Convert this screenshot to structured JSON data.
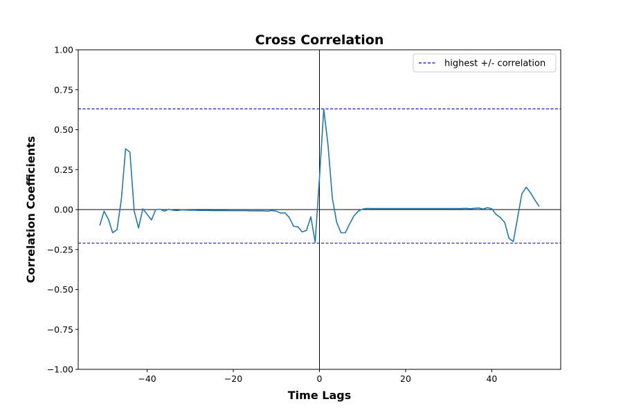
{
  "chart_data": {
    "type": "line",
    "title": "Cross Correlation",
    "xlabel": "Time Lags",
    "ylabel": "Correlation Coefficients",
    "xlim": [
      -56,
      56
    ],
    "ylim": [
      -1.0,
      1.0
    ],
    "x_ticks": [
      -40,
      -20,
      0,
      20,
      40
    ],
    "x_tick_labels": [
      "−40",
      "−20",
      "0",
      "20",
      "40"
    ],
    "y_ticks": [
      -1.0,
      -0.75,
      -0.5,
      -0.25,
      0.0,
      0.25,
      0.5,
      0.75,
      1.0
    ],
    "y_tick_labels": [
      "−1.00",
      "−0.75",
      "−0.50",
      "−0.25",
      "0.00",
      "0.25",
      "0.50",
      "0.75",
      "1.00"
    ],
    "grid": false,
    "legend": {
      "placement": "top-right",
      "entries": [
        "highest +/- correlation"
      ]
    },
    "series": [
      {
        "color": "#1f77b4",
        "x": [
          -51,
          -50,
          -49,
          -48,
          -47,
          -46,
          -45,
          -44,
          -43,
          -42,
          -41,
          -40,
          -39,
          -38,
          -37,
          -36,
          -35,
          -34,
          -33,
          -32,
          -31,
          -30,
          -29,
          -28,
          -27,
          -26,
          -25,
          -24,
          -23,
          -22,
          -21,
          -20,
          -19,
          -18,
          -17,
          -16,
          -15,
          -14,
          -13,
          -12,
          -11,
          -10,
          -9,
          -8,
          -7,
          -6,
          -5,
          -4,
          -3,
          -2,
          -1,
          0,
          1,
          2,
          3,
          4,
          5,
          6,
          7,
          8,
          9,
          10,
          11,
          12,
          13,
          14,
          15,
          16,
          17,
          18,
          19,
          20,
          21,
          22,
          23,
          24,
          25,
          26,
          27,
          28,
          29,
          30,
          31,
          32,
          33,
          34,
          35,
          36,
          37,
          38,
          39,
          40,
          41,
          42,
          43,
          44,
          45,
          46,
          47,
          48,
          49,
          50,
          51
        ],
        "y": [
          -0.1,
          -0.01,
          -0.06,
          -0.145,
          -0.125,
          0.06,
          0.38,
          0.36,
          -0.01,
          -0.115,
          0.005,
          -0.03,
          -0.065,
          0.0,
          0.002,
          -0.01,
          0.002,
          -0.004,
          -0.006,
          -0.002,
          -0.003,
          -0.004,
          -0.004,
          -0.005,
          -0.005,
          -0.005,
          -0.006,
          -0.006,
          -0.006,
          -0.006,
          -0.007,
          -0.007,
          -0.007,
          -0.007,
          -0.007,
          -0.008,
          -0.008,
          -0.008,
          -0.008,
          -0.01,
          -0.006,
          -0.01,
          -0.022,
          -0.02,
          -0.05,
          -0.105,
          -0.108,
          -0.14,
          -0.13,
          -0.045,
          -0.205,
          0.2,
          0.63,
          0.4,
          0.07,
          -0.08,
          -0.145,
          -0.145,
          -0.09,
          -0.04,
          -0.01,
          0.003,
          0.007,
          0.006,
          0.006,
          0.006,
          0.006,
          0.006,
          0.006,
          0.006,
          0.006,
          0.006,
          0.006,
          0.006,
          0.006,
          0.006,
          0.006,
          0.006,
          0.006,
          0.006,
          0.006,
          0.006,
          0.006,
          0.006,
          0.006,
          0.008,
          0.005,
          0.008,
          0.01,
          0.003,
          0.012,
          0.005,
          -0.03,
          -0.05,
          -0.08,
          -0.18,
          -0.2,
          -0.05,
          0.1,
          0.14,
          0.105,
          0.06,
          0.02
        ]
      }
    ],
    "reference_lines": [
      {
        "type": "horizontal",
        "value": 0.63,
        "style": "dashed",
        "color": "#0000cc",
        "label": "highest +/- correlation"
      },
      {
        "type": "horizontal",
        "value": -0.21,
        "style": "dashed",
        "color": "#0000cc"
      },
      {
        "type": "horizontal",
        "value": 0.0,
        "style": "solid",
        "color": "#000000"
      },
      {
        "type": "vertical",
        "value": 0.0,
        "style": "solid",
        "color": "#000000"
      }
    ]
  }
}
